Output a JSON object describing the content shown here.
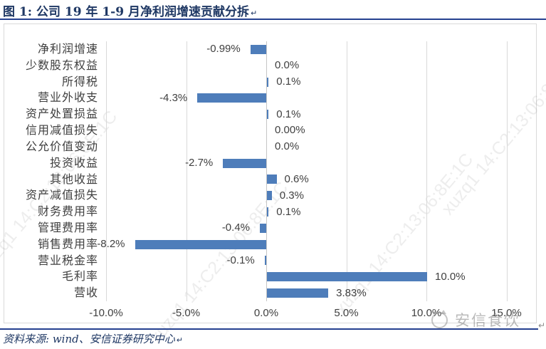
{
  "title": {
    "text": "图 1: 公司 19 年 1-9 月净利润增速贡献分拆",
    "paragraph_mark": "↵"
  },
  "source": {
    "text": "资料来源: wind、安信证券研究中心",
    "paragraph_mark": "↵"
  },
  "watermark": {
    "diagonal_text": "xuzq1 14:C2:13:06:8E:1C",
    "brand_text": "安信食饮"
  },
  "colors": {
    "bar": "#4E7DBA",
    "navy_text": "#1F3864",
    "rule": "#25408F",
    "gridline": "#D9D9D9",
    "label": "#404040"
  },
  "chart_data": {
    "type": "bar",
    "orientation": "horizontal",
    "title": "公司 19 年 1-9 月净利润增速贡献分拆",
    "categories": [
      "净利润增速",
      "少数股东权益",
      "所得税",
      "营业外收支",
      "资产处置损益",
      "信用减值损失",
      "公允价值变动",
      "投资收益",
      "其他收益",
      "资产减值损失",
      "财务费用率",
      "管理费用率",
      "销售费用率",
      "营业税金率",
      "毛利率",
      "营收"
    ],
    "values": [
      -0.99,
      0.0,
      0.1,
      -4.3,
      0.1,
      0.0,
      0.0,
      -2.7,
      0.6,
      0.3,
      0.1,
      -0.4,
      -8.2,
      -0.1,
      10.0,
      3.83
    ],
    "data_labels": [
      "-0.99%",
      "0.0%",
      "0.1%",
      "-4.3%",
      "0.1%",
      "0.00%",
      "0.0%",
      "-2.7%",
      "0.6%",
      "0.3%",
      "0.1%",
      "-0.4%",
      "-8.2%",
      "-0.1%",
      "10.0%",
      "3.83%"
    ],
    "x_ticks": [
      "-10.0%",
      "-5.0%",
      "0.0%",
      "5.0%",
      "10.0%",
      "15.0%"
    ],
    "x_tick_values": [
      -10,
      -5,
      0,
      5,
      10,
      15
    ],
    "xlim": [
      -10,
      15
    ],
    "grid": "vertical",
    "legend": "none",
    "bar_color": "#4E7DBA"
  }
}
